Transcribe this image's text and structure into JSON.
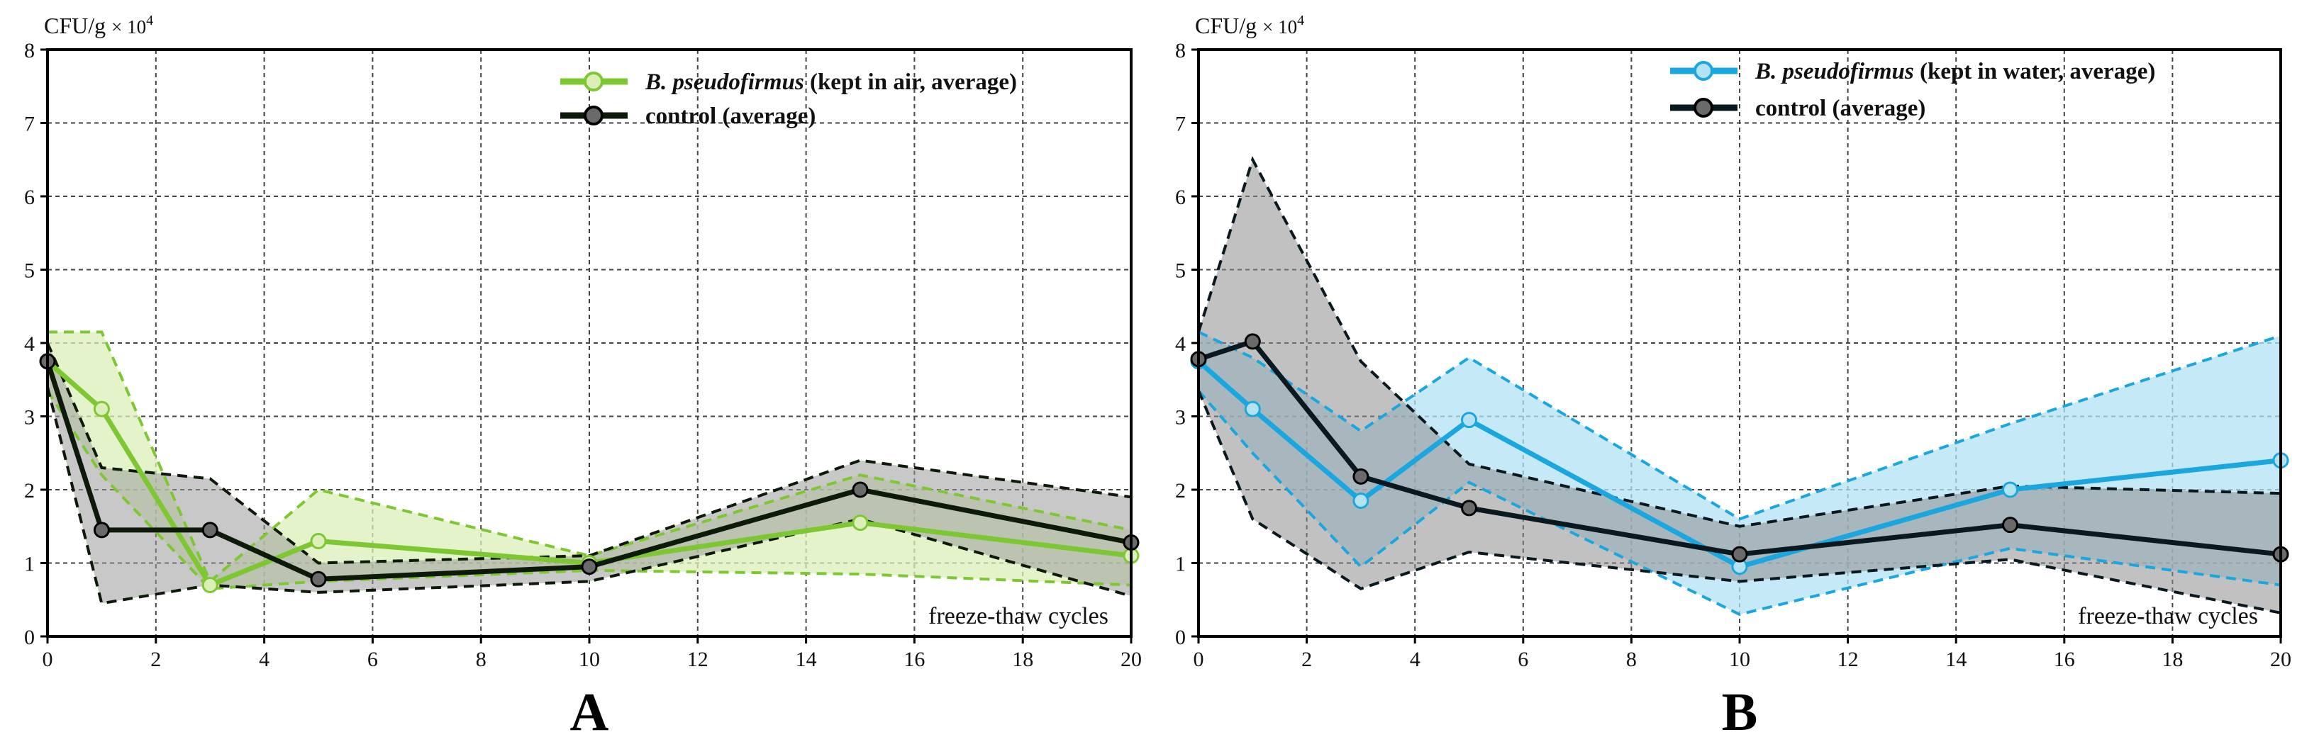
{
  "chart_data": [
    {
      "panel": "A",
      "type": "line",
      "title": "A",
      "ylabel": "CFU/g",
      "yunit": "× 10",
      "yunit_exp": "4",
      "xlabel": "freeze-thaw cycles",
      "xlim": [
        0,
        20
      ],
      "ylim": [
        0,
        8
      ],
      "xticks": [
        0,
        2,
        4,
        6,
        8,
        10,
        12,
        14,
        16,
        18,
        20
      ],
      "yticks": [
        0,
        1,
        2,
        3,
        4,
        5,
        6,
        7,
        8
      ],
      "grid": true,
      "legend_position": "top-right",
      "series": [
        {
          "name_italic": "B. pseudofirmus",
          "name": " (kept in air, average)",
          "color": "#7dc832",
          "fill": "#dcefb8",
          "x": [
            0,
            1,
            3,
            5,
            10,
            15,
            20
          ],
          "values": [
            3.75,
            3.1,
            0.7,
            1.3,
            1.0,
            1.55,
            1.1
          ],
          "upper": [
            4.15,
            4.15,
            0.75,
            2.0,
            1.1,
            2.2,
            1.45
          ],
          "lower": [
            3.35,
            2.2,
            0.65,
            0.75,
            0.9,
            0.85,
            0.7
          ]
        },
        {
          "name_italic": "",
          "name": "control (average)",
          "color": "#0d1a0a",
          "fill": "#9a9a9a",
          "x": [
            0,
            1,
            3,
            5,
            10,
            15,
            20
          ],
          "values": [
            3.75,
            1.45,
            1.45,
            0.78,
            0.95,
            2.0,
            1.28
          ],
          "upper": [
            4.0,
            2.3,
            2.15,
            1.0,
            1.1,
            2.4,
            1.9
          ],
          "lower": [
            3.4,
            0.45,
            0.7,
            0.6,
            0.75,
            1.6,
            0.55
          ]
        }
      ]
    },
    {
      "panel": "B",
      "type": "line",
      "title": "B",
      "ylabel": "CFU/g",
      "yunit": "× 10",
      "yunit_exp": "4",
      "xlabel": "freeze-thaw cycles",
      "xlim": [
        0,
        20
      ],
      "ylim": [
        0,
        8
      ],
      "xticks": [
        0,
        2,
        4,
        6,
        8,
        10,
        12,
        14,
        16,
        18,
        20
      ],
      "yticks": [
        0,
        1,
        2,
        3,
        4,
        5,
        6,
        7,
        8
      ],
      "grid": true,
      "legend_position": "top-right",
      "series": [
        {
          "name_italic": "B. pseudofirmus",
          "name": " (kept in water, average)",
          "color": "#1aa6de",
          "fill": "#b3e2f4",
          "x": [
            0,
            1,
            3,
            5,
            10,
            15,
            20
          ],
          "values": [
            3.75,
            3.1,
            1.85,
            2.95,
            0.95,
            2.0,
            2.4
          ],
          "upper": [
            4.15,
            3.8,
            2.8,
            3.8,
            1.6,
            2.9,
            4.1
          ],
          "lower": [
            3.35,
            2.5,
            0.95,
            2.1,
            0.3,
            1.2,
            0.7
          ]
        },
        {
          "name_italic": "",
          "name": "control (average)",
          "color": "#0a1820",
          "fill": "#8e8e8e",
          "x": [
            0,
            1,
            3,
            5,
            10,
            15,
            20
          ],
          "values": [
            3.78,
            4.02,
            2.18,
            1.75,
            1.12,
            1.52,
            1.12
          ],
          "upper": [
            4.15,
            6.5,
            3.75,
            2.35,
            1.5,
            2.05,
            1.95
          ],
          "lower": [
            3.35,
            1.6,
            0.65,
            1.15,
            0.75,
            1.05,
            0.32
          ]
        }
      ]
    }
  ]
}
